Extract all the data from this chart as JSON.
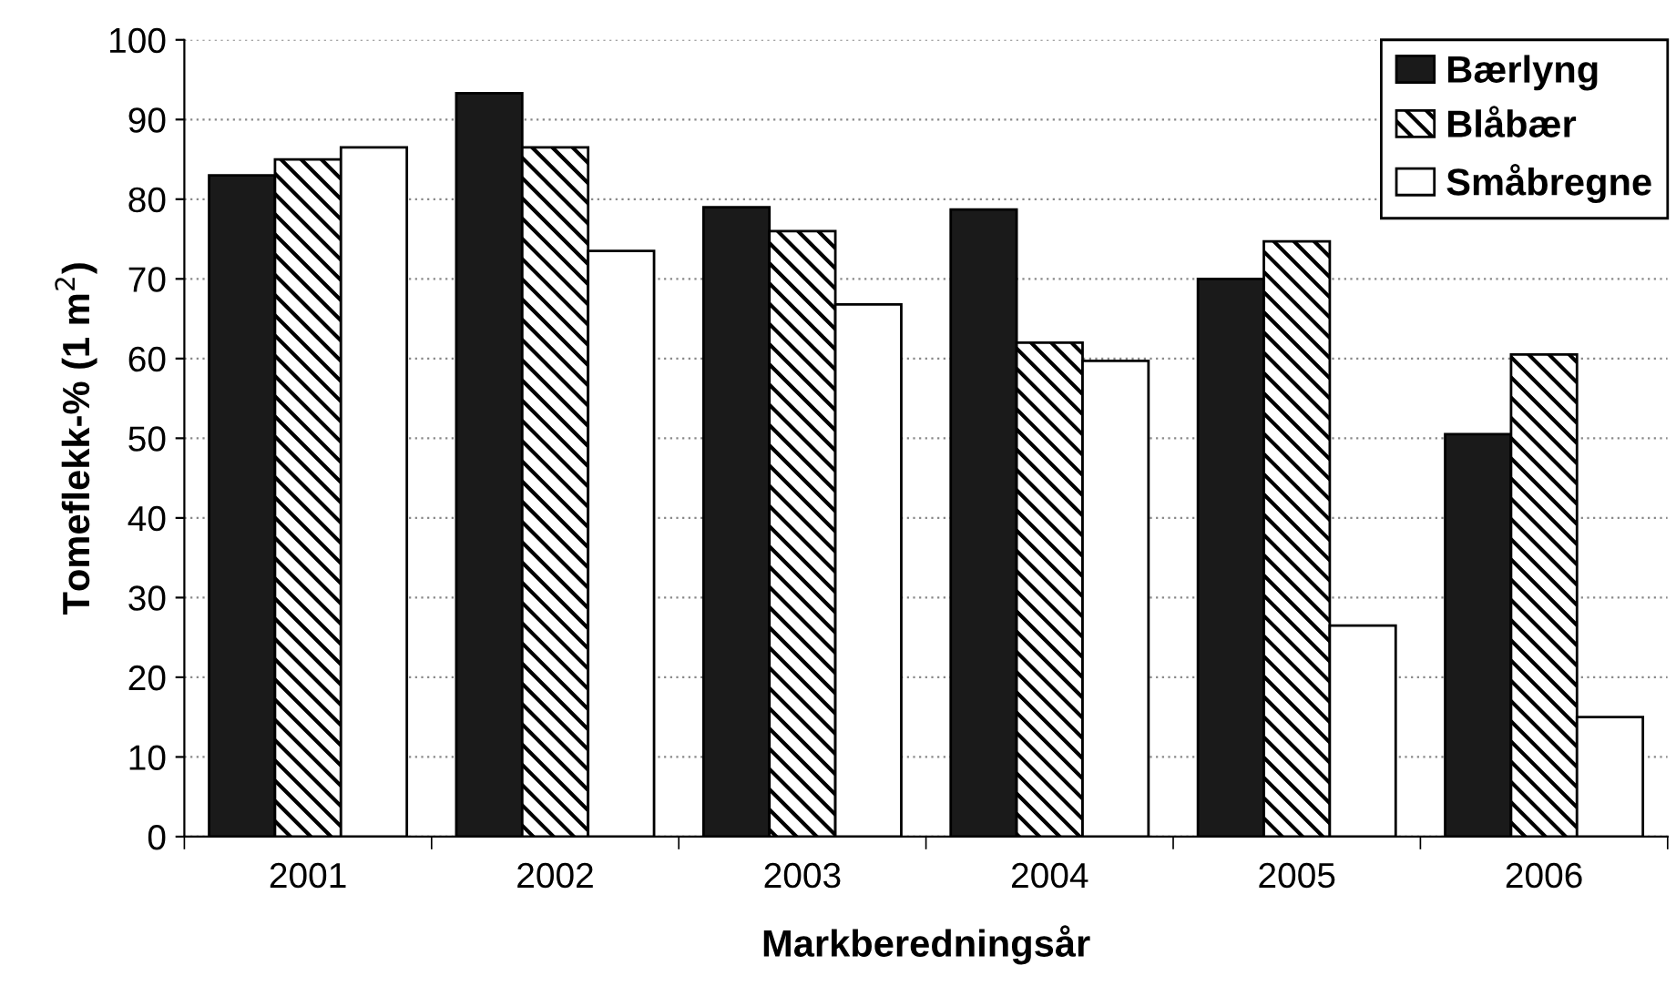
{
  "chart_data": {
    "type": "bar",
    "xlabel": "Markberedningsår",
    "ylabel": "Tomeflekk-% (1 m$^{2}$)",
    "categories": [
      "2001",
      "2002",
      "2003",
      "2004",
      "2005",
      "2006"
    ],
    "series": [
      {
        "name": "Bærlyng",
        "color": "#1a1a1a",
        "values": [
          83,
          93.3,
          79,
          78.7,
          70,
          50.5
        ]
      },
      {
        "name": "Blåbær",
        "color": "#000000",
        "values": [
          85,
          86.5,
          76,
          62,
          74.7,
          60.5
        ]
      },
      {
        "name": "Småbregne",
        "color": "#ffffff",
        "values": [
          86.5,
          73.5,
          66.8,
          59.7,
          26.5,
          15
        ]
      }
    ],
    "ylim": [
      0,
      100
    ],
    "yticks": [
      0,
      10,
      20,
      30,
      40,
      50,
      60,
      70,
      80,
      90,
      100
    ],
    "grid": "y",
    "legend": "top right"
  }
}
